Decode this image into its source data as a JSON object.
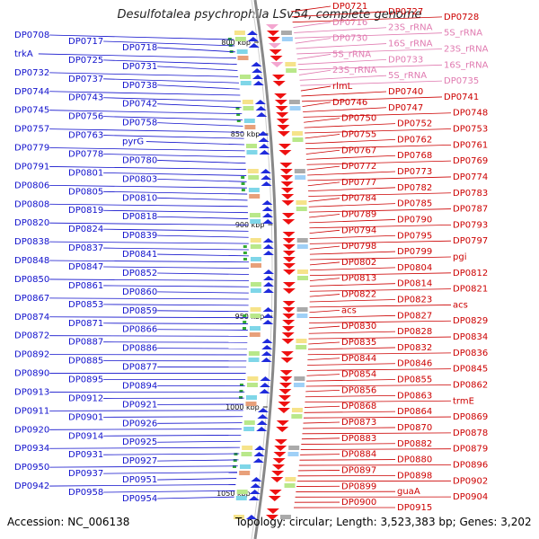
{
  "title": "Desulfotalea psychrophila LSv54, complete genome",
  "accession": "Accession: NC_006138",
  "topology": "Topology: circular; Length: 3,523,383 bp; Genes: 3,202",
  "colors": {
    "left_label": "#1010cc",
    "right_label": "#cc0000",
    "rna_label": "#e07ab0",
    "backbone": "#888888",
    "minus_arrow": "#1f2bdc",
    "plus_arrow": "#ee1111",
    "rna_arrow": "#f3a6d0"
  },
  "ticks": [
    "800 kbp",
    "850 kbp",
    "900 kbp",
    "950 kbp",
    "1000 kbp",
    "1050 kbp"
  ],
  "left_labels": [
    "DP0708",
    "DP0717",
    "DP0718",
    "trkA",
    "DP0725",
    "DP0731",
    "DP0732",
    "DP0737",
    "DP0738",
    "DP0744",
    "DP0743",
    "DP0742",
    "DP0745",
    "DP0756",
    "DP0758",
    "DP0757",
    "DP0763",
    "pyrG",
    "DP0779",
    "DP0778",
    "DP0780",
    "DP0791",
    "DP0801",
    "DP0803",
    "DP0806",
    "DP0805",
    "DP0810",
    "DP0808",
    "DP0819",
    "DP0818",
    "DP0820",
    "DP0824",
    "DP0839",
    "DP0838",
    "DP0837",
    "DP0841",
    "DP0848",
    "DP0847",
    "DP0852",
    "DP0850",
    "DP0861",
    "DP0860",
    "DP0867",
    "DP0853",
    "DP0859",
    "DP0874",
    "DP0871",
    "DP0866",
    "DP0872",
    "DP0887",
    "DP0886",
    "DP0892",
    "DP0885",
    "DP0877",
    "DP0890",
    "DP0895",
    "DP0894",
    "DP0913",
    "DP0912",
    "DP0921",
    "DP0911",
    "DP0901",
    "DP0926",
    "DP0920",
    "DP0914",
    "DP0925",
    "DP0934",
    "DP0931",
    "DP0927",
    "DP0950",
    "DP0937",
    "DP0951",
    "DP0942",
    "DP0958",
    "DP0954"
  ],
  "right_labels": [
    "DP0721",
    "DP0727",
    "DP0728",
    "DP0716",
    "23S_rRNA",
    "5S_rRNA",
    "DP0730",
    "16S_rRNA",
    "23S_rRNA",
    "5S_rRNA",
    "DP0733",
    "16S_rRNA",
    "23S_rRNA",
    "5S_rRNA",
    "DP0735",
    "rlmL",
    "DP0740",
    "DP0741",
    "DP0746",
    "DP0747",
    "DP0748",
    "DP0750",
    "DP0752",
    "DP0753",
    "DP0755",
    "DP0762",
    "DP0761",
    "DP0767",
    "DP0768",
    "DP0769",
    "DP0772",
    "DP0773",
    "DP0774",
    "DP0777",
    "DP0782",
    "DP0783",
    "DP0784",
    "DP0785",
    "DP0787",
    "DP0789",
    "DP0790",
    "DP0793",
    "DP0794",
    "DP0795",
    "DP0797",
    "DP0798",
    "DP0799",
    "pgi",
    "DP0802",
    "DP0804",
    "DP0812",
    "DP0813",
    "DP0814",
    "DP0821",
    "DP0822",
    "DP0823",
    "acs",
    "acs",
    "DP0827",
    "DP0829",
    "DP0830",
    "DP0828",
    "DP0834",
    "DP0835",
    "DP0832",
    "DP0836",
    "DP0844",
    "DP0846",
    "DP0845",
    "DP0854",
    "DP0855",
    "DP0862",
    "DP0856",
    "DP0863",
    "trmE",
    "DP0868",
    "DP0864",
    "DP0869",
    "DP0873",
    "DP0870",
    "DP0878",
    "DP0883",
    "DP0882",
    "DP0879",
    "DP0884",
    "DP0880",
    "DP0896",
    "DP0897",
    "DP0898",
    "DP0902",
    "DP0899",
    "guaA",
    "DP0904",
    "DP0900",
    "DP0915"
  ]
}
